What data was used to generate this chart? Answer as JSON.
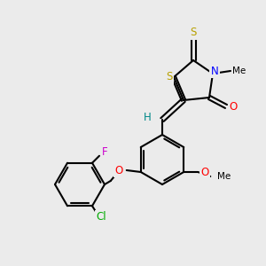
{
  "bg_color": "#ebebeb",
  "bond_color": "#000000",
  "bond_lw": 1.5,
  "atom_colors": {
    "S": "#b8a000",
    "N": "#0000ff",
    "O": "#ff0000",
    "F": "#cc00cc",
    "Cl": "#00aa00",
    "H": "#008888",
    "C": "#000000"
  },
  "font_size": 8.5,
  "font_size_small": 7.5
}
